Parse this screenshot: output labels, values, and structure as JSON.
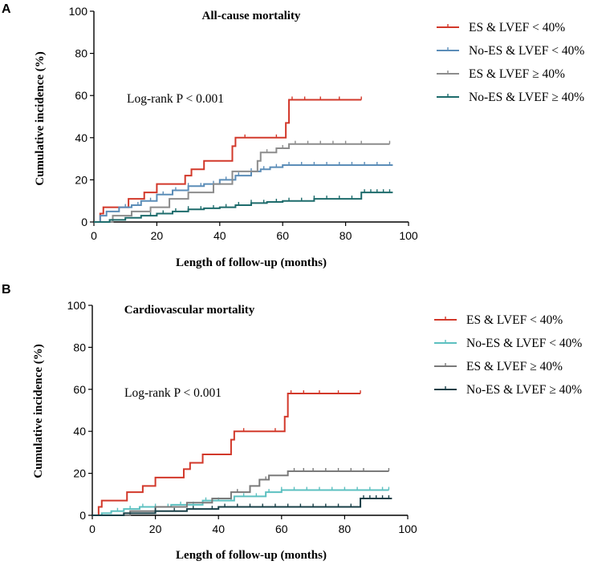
{
  "chart_data": [
    {
      "type": "line",
      "panel": "A",
      "title": "All-cause mortality",
      "xlabel": "Length of follow-up (months)",
      "ylabel": "Cumulative incidence (%)",
      "xlim": [
        0,
        100
      ],
      "ylim": [
        0,
        100
      ],
      "xticks": [
        "0",
        "20",
        "40",
        "60",
        "80",
        "100"
      ],
      "yticks": [
        "0",
        "20",
        "40",
        "60",
        "80",
        "100"
      ],
      "annotation": "Log-rank P < 0.001",
      "legend_position": "right",
      "series": [
        {
          "name": "ES & LVEF < 40%",
          "color": "#d2382a",
          "x": [
            0,
            2,
            3,
            11,
            16,
            20,
            29,
            31,
            35,
            44,
            45,
            52,
            57,
            61,
            62,
            85
          ],
          "y": [
            0,
            4,
            7,
            11,
            14,
            18,
            22,
            25,
            29,
            36,
            40,
            40,
            40,
            47,
            58,
            58
          ],
          "censor": [
            48,
            58,
            63,
            67,
            72,
            78,
            85
          ]
        },
        {
          "name": "No-ES & LVEF < 40%",
          "color": "#5b8db8",
          "x": [
            0,
            2,
            4,
            8,
            12,
            15,
            20,
            25,
            30,
            35,
            40,
            45,
            50,
            53,
            56,
            60,
            95
          ],
          "y": [
            0,
            3,
            5,
            7,
            8,
            10,
            13,
            15,
            17,
            18,
            20,
            22,
            24,
            25,
            26,
            27,
            27
          ],
          "censor": [
            10,
            14,
            18,
            22,
            26,
            30,
            34,
            38,
            42,
            46,
            50,
            54,
            58,
            62,
            66,
            70,
            74,
            78,
            82,
            86,
            90,
            94
          ]
        },
        {
          "name": "ES & LVEF ≥ 40%",
          "color": "#8c8c8c",
          "x": [
            0,
            6,
            12,
            18,
            24,
            30,
            38,
            44,
            52,
            53,
            58,
            62,
            94
          ],
          "y": [
            0,
            3,
            5,
            7,
            11,
            14,
            18,
            24,
            29,
            33,
            35,
            37,
            37
          ],
          "censor": [
            55,
            60,
            64,
            68,
            72,
            76,
            80,
            85,
            94
          ]
        },
        {
          "name": "No-ES & LVEF ≥ 40%",
          "color": "#1d6b6b",
          "x": [
            0,
            5,
            10,
            15,
            20,
            25,
            30,
            35,
            40,
            45,
            50,
            55,
            60,
            70,
            85,
            95
          ],
          "y": [
            0,
            1,
            2,
            3,
            4,
            5,
            6,
            6.5,
            7,
            8,
            9,
            9.5,
            10,
            11,
            14,
            14
          ],
          "censor": [
            18,
            22,
            26,
            30,
            34,
            38,
            42,
            46,
            50,
            54,
            58,
            62,
            66,
            70,
            74,
            78,
            82,
            86,
            88,
            90,
            92,
            94
          ]
        }
      ]
    },
    {
      "type": "line",
      "panel": "B",
      "title": "Cardiovascular mortality",
      "xlabel": "Length of follow-up (months)",
      "ylabel": "Cumulative incidence (%)",
      "xlim": [
        0,
        100
      ],
      "ylim": [
        0,
        100
      ],
      "xticks": [
        "0",
        "20",
        "40",
        "60",
        "80",
        "100"
      ],
      "yticks": [
        "0",
        "20",
        "40",
        "60",
        "80",
        "100"
      ],
      "annotation": "Log-rank P < 0.001",
      "legend_position": "right",
      "series": [
        {
          "name": "ES & LVEF < 40%",
          "color": "#d2382a",
          "x": [
            0,
            2,
            3,
            11,
            16,
            20,
            29,
            31,
            35,
            44,
            45,
            52,
            57,
            61,
            62,
            85
          ],
          "y": [
            0,
            4,
            7,
            11,
            14,
            18,
            22,
            25,
            29,
            36,
            40,
            40,
            40,
            47,
            58,
            58
          ],
          "censor": [
            48,
            58,
            63,
            67,
            72,
            78,
            85
          ]
        },
        {
          "name": "No-ES & LVEF < 40%",
          "color": "#5cc0c0",
          "x": [
            0,
            3,
            6,
            10,
            15,
            25,
            35,
            45,
            55,
            60,
            94
          ],
          "y": [
            0,
            1,
            2,
            3,
            4,
            5,
            7,
            9,
            11,
            12,
            12
          ],
          "censor": [
            8,
            12,
            16,
            20,
            24,
            28,
            32,
            36,
            40,
            44,
            48,
            52,
            56,
            60,
            64,
            68,
            72,
            76,
            80,
            84,
            88,
            92,
            94
          ]
        },
        {
          "name": "ES & LVEF ≥ 40%",
          "color": "#7a7a7a",
          "x": [
            0,
            12,
            20,
            30,
            38,
            44,
            50,
            53,
            56,
            62,
            94
          ],
          "y": [
            0,
            2,
            4,
            6,
            8,
            11,
            14,
            17,
            19,
            21,
            21
          ],
          "censor": [
            46,
            55,
            64,
            67,
            70,
            74,
            78,
            82,
            86,
            94
          ]
        },
        {
          "name": "No-ES & LVEF ≥ 40%",
          "color": "#183f47",
          "x": [
            0,
            10,
            20,
            30,
            40,
            85,
            95
          ],
          "y": [
            0,
            1,
            2,
            3,
            4,
            8,
            8
          ],
          "censor": [
            20,
            26,
            32,
            38,
            42,
            46,
            50,
            54,
            58,
            62,
            66,
            70,
            74,
            78,
            82,
            86,
            88,
            90,
            92,
            94
          ]
        }
      ]
    }
  ]
}
